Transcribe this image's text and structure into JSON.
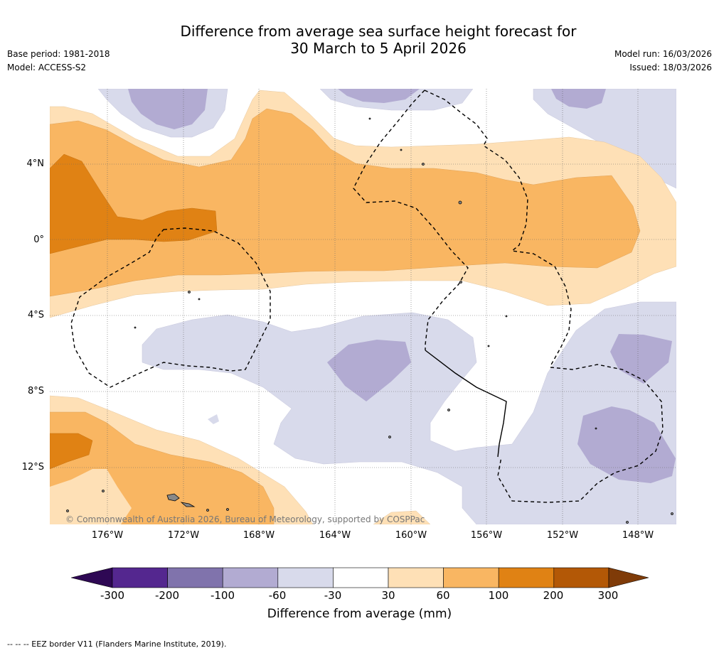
{
  "title": {
    "line1": "Difference from average sea surface height forecast for",
    "line2": "30 March to 5 April 2026"
  },
  "meta": {
    "base_period": "Base period: 1981-2018",
    "model": "Model: ACCESS-S2",
    "model_run": "Model run: 16/03/2026",
    "issued": "Issued: 18/03/2026"
  },
  "map": {
    "copyright": "© Commonwealth of Australia 2026, Bureau of Meteorology, supported by COSPPac",
    "lat_labels": [
      "4°N",
      "0°",
      "4°S",
      "8°S",
      "12°S"
    ],
    "lon_labels": [
      "176°W",
      "172°W",
      "168°W",
      "164°W",
      "160°W",
      "156°W",
      "152°W",
      "148°W"
    ]
  },
  "colorbar": {
    "label": "Difference from average (mm)",
    "ticks": [
      "-300",
      "-200",
      "-100",
      "-60",
      "-30",
      "30",
      "60",
      "100",
      "200",
      "300"
    ],
    "colors": {
      "below": "#2e0854",
      "neg_300_200": "#54278f",
      "neg_200_100": "#8073ac",
      "neg_100_60": "#b2abd2",
      "neg_60_30": "#d8daeb",
      "neutral": "#ffffff",
      "pos_30_60": "#fee0b6",
      "pos_60_100": "#f9b662",
      "pos_100_200": "#e08214",
      "pos_200_300": "#b35806",
      "above": "#7f3b08"
    }
  },
  "footer": {
    "eez_note": "--  --  -- EEZ border V11 (Flanders Marine Institute, 2019)."
  }
}
